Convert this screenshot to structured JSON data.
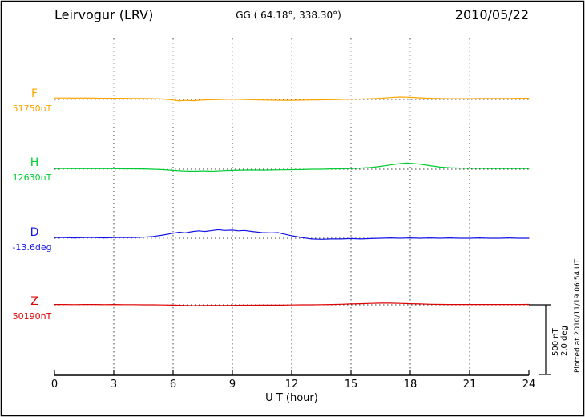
{
  "header": {
    "station": "Leirvogur (LRV)",
    "coords": "GG ( 64.18°, 338.30°)",
    "date": "2010/05/22"
  },
  "footer_note": "Plotted at 2010/11/19 06:54 UT",
  "scale_bar": {
    "line1": "500 nT",
    "line2": "2.0 deg"
  },
  "x_axis": {
    "label": "U T (hour)",
    "ticks": [
      0,
      3,
      6,
      9,
      12,
      15,
      18,
      21,
      24
    ],
    "grid_hours": [
      3,
      6,
      9,
      12,
      15,
      18,
      21
    ],
    "min": 0,
    "max": 24
  },
  "chart_data": {
    "type": "line",
    "title": "Leirvogur (LRV) magnetogram 2010/05/22",
    "xlabel": "U T (hour)",
    "xlim": [
      0,
      24
    ],
    "grid": true,
    "scale_reference": {
      "nT_per_bar": 500,
      "deg_per_bar": 2.0
    },
    "series": [
      {
        "id": "F",
        "label": "F",
        "baseline_label": "51750nT",
        "baseline_value": 51750,
        "unit": "nT",
        "color": "#FFA500",
        "points": [
          [
            0,
            10
          ],
          [
            0.5,
            10
          ],
          [
            1,
            9
          ],
          [
            1.5,
            10
          ],
          [
            2,
            9
          ],
          [
            2.5,
            8
          ],
          [
            3,
            8
          ],
          [
            3.5,
            8
          ],
          [
            4,
            7
          ],
          [
            4.5,
            6
          ],
          [
            5,
            5
          ],
          [
            5.5,
            3
          ],
          [
            6,
            -4
          ],
          [
            6.3,
            -11
          ],
          [
            6.6,
            -7
          ],
          [
            7,
            -9
          ],
          [
            7.5,
            -4
          ],
          [
            8,
            -2
          ],
          [
            8.5,
            0
          ],
          [
            9,
            2
          ],
          [
            9.5,
            0
          ],
          [
            10,
            -2
          ],
          [
            10.5,
            -4
          ],
          [
            11,
            -5
          ],
          [
            11.5,
            -6
          ],
          [
            12,
            -6
          ],
          [
            12.5,
            -5
          ],
          [
            13,
            -4
          ],
          [
            13.5,
            -3
          ],
          [
            14,
            -2
          ],
          [
            14.5,
            0
          ],
          [
            15,
            2
          ],
          [
            15.5,
            3
          ],
          [
            16,
            5
          ],
          [
            16.5,
            8
          ],
          [
            17,
            13
          ],
          [
            17.5,
            17
          ],
          [
            18,
            15
          ],
          [
            18.5,
            11
          ],
          [
            19,
            8
          ],
          [
            19.5,
            6
          ],
          [
            20,
            5
          ],
          [
            20.5,
            5
          ],
          [
            21,
            5
          ],
          [
            21.5,
            6
          ],
          [
            22,
            6
          ],
          [
            22.5,
            7
          ],
          [
            23,
            7
          ],
          [
            23.5,
            8
          ],
          [
            24,
            8
          ]
        ]
      },
      {
        "id": "H",
        "label": "H",
        "baseline_label": "12630nT",
        "baseline_value": 12630,
        "unit": "nT",
        "color": "#00CC33",
        "points": [
          [
            0,
            5
          ],
          [
            0.5,
            5
          ],
          [
            1,
            4
          ],
          [
            1.5,
            5
          ],
          [
            2,
            4
          ],
          [
            2.5,
            4
          ],
          [
            3,
            4
          ],
          [
            3.5,
            3
          ],
          [
            4,
            3
          ],
          [
            4.5,
            2
          ],
          [
            5,
            0
          ],
          [
            5.5,
            -3
          ],
          [
            6,
            -8
          ],
          [
            6.5,
            -12
          ],
          [
            7,
            -14
          ],
          [
            7.5,
            -12
          ],
          [
            8,
            -14
          ],
          [
            8.5,
            -10
          ],
          [
            9,
            -8
          ],
          [
            9.5,
            -6
          ],
          [
            10,
            -5
          ],
          [
            10.5,
            -6
          ],
          [
            11,
            -5
          ],
          [
            11.5,
            -4
          ],
          [
            12,
            -3
          ],
          [
            12.5,
            -2
          ],
          [
            13,
            0
          ],
          [
            13.5,
            0
          ],
          [
            14,
            2
          ],
          [
            14.5,
            3
          ],
          [
            15,
            5
          ],
          [
            15.5,
            8
          ],
          [
            16,
            12
          ],
          [
            16.5,
            20
          ],
          [
            17,
            30
          ],
          [
            17.5,
            40
          ],
          [
            17.8,
            44
          ],
          [
            18,
            42
          ],
          [
            18.5,
            35
          ],
          [
            19,
            25
          ],
          [
            19.5,
            15
          ],
          [
            20,
            10
          ],
          [
            20.5,
            8
          ],
          [
            21,
            6
          ],
          [
            21.5,
            6
          ],
          [
            22,
            5
          ],
          [
            22.5,
            5
          ],
          [
            23,
            5
          ],
          [
            23.5,
            5
          ],
          [
            24,
            5
          ]
        ]
      },
      {
        "id": "D",
        "label": "D",
        "baseline_label": "-13.6deg",
        "baseline_value": -13.6,
        "unit": "deg",
        "color": "#1515E8",
        "points": [
          [
            0,
            0.02
          ],
          [
            0.5,
            0.02
          ],
          [
            1,
            0.01
          ],
          [
            1.5,
            0.02
          ],
          [
            2,
            0.02
          ],
          [
            2.5,
            0.01
          ],
          [
            3,
            0.02
          ],
          [
            3.5,
            0.02
          ],
          [
            4,
            0.02
          ],
          [
            4.5,
            0.03
          ],
          [
            5,
            0.05
          ],
          [
            5.5,
            0.09
          ],
          [
            6,
            0.14
          ],
          [
            6.3,
            0.17
          ],
          [
            6.6,
            0.15
          ],
          [
            7,
            0.19
          ],
          [
            7.3,
            0.21
          ],
          [
            7.6,
            0.19
          ],
          [
            8,
            0.22
          ],
          [
            8.3,
            0.24
          ],
          [
            8.6,
            0.22
          ],
          [
            9,
            0.23
          ],
          [
            9.3,
            0.21
          ],
          [
            9.6,
            0.22
          ],
          [
            10,
            0.19
          ],
          [
            10.5,
            0.16
          ],
          [
            11,
            0.15
          ],
          [
            11.3,
            0.16
          ],
          [
            11.6,
            0.12
          ],
          [
            12,
            0.07
          ],
          [
            12.5,
            0.02
          ],
          [
            13,
            -0.02
          ],
          [
            13.5,
            -0.03
          ],
          [
            14,
            -0.02
          ],
          [
            14.5,
            -0.02
          ],
          [
            15,
            -0.01
          ],
          [
            15.5,
            -0.02
          ],
          [
            16,
            -0.01
          ],
          [
            16.5,
            0
          ],
          [
            17,
            0.01
          ],
          [
            17.5,
            0
          ],
          [
            18,
            0.01
          ],
          [
            18.5,
            0
          ],
          [
            19,
            0.01
          ],
          [
            19.5,
            0
          ],
          [
            20,
            0.01
          ],
          [
            20.5,
            0
          ],
          [
            21,
            0
          ],
          [
            21.5,
            0.01
          ],
          [
            22,
            0
          ],
          [
            22.5,
            0
          ],
          [
            23,
            0.01
          ],
          [
            23.5,
            0
          ],
          [
            24,
            0
          ]
        ]
      },
      {
        "id": "Z",
        "label": "Z",
        "baseline_label": "50190nT",
        "baseline_value": 50190,
        "unit": "nT",
        "color": "#DD0000",
        "points": [
          [
            0,
            2
          ],
          [
            0.5,
            2
          ],
          [
            1,
            1
          ],
          [
            1.5,
            2
          ],
          [
            2,
            2
          ],
          [
            2.5,
            1
          ],
          [
            3,
            2
          ],
          [
            3.5,
            1
          ],
          [
            4,
            1
          ],
          [
            4.5,
            0
          ],
          [
            5,
            0
          ],
          [
            5.5,
            -1
          ],
          [
            6,
            -2
          ],
          [
            6.5,
            -4
          ],
          [
            7,
            -6
          ],
          [
            7.5,
            -5
          ],
          [
            8,
            -4
          ],
          [
            8.5,
            -5
          ],
          [
            9,
            -4
          ],
          [
            9.5,
            -3
          ],
          [
            10,
            -3
          ],
          [
            10.5,
            -2
          ],
          [
            11,
            -2
          ],
          [
            11.5,
            -2
          ],
          [
            12,
            -1
          ],
          [
            12.5,
            0
          ],
          [
            13,
            0
          ],
          [
            13.5,
            1
          ],
          [
            14,
            2
          ],
          [
            14.5,
            4
          ],
          [
            15,
            6
          ],
          [
            15.5,
            8
          ],
          [
            16,
            10
          ],
          [
            16.5,
            12
          ],
          [
            17,
            12
          ],
          [
            17.5,
            10
          ],
          [
            18,
            8
          ],
          [
            18.5,
            6
          ],
          [
            19,
            4
          ],
          [
            19.5,
            3
          ],
          [
            20,
            2
          ],
          [
            20.5,
            2
          ],
          [
            21,
            2
          ],
          [
            21.5,
            2
          ],
          [
            22,
            2
          ],
          [
            22.5,
            2
          ],
          [
            23,
            2
          ],
          [
            23.5,
            2
          ],
          [
            24,
            3
          ]
        ]
      }
    ]
  }
}
